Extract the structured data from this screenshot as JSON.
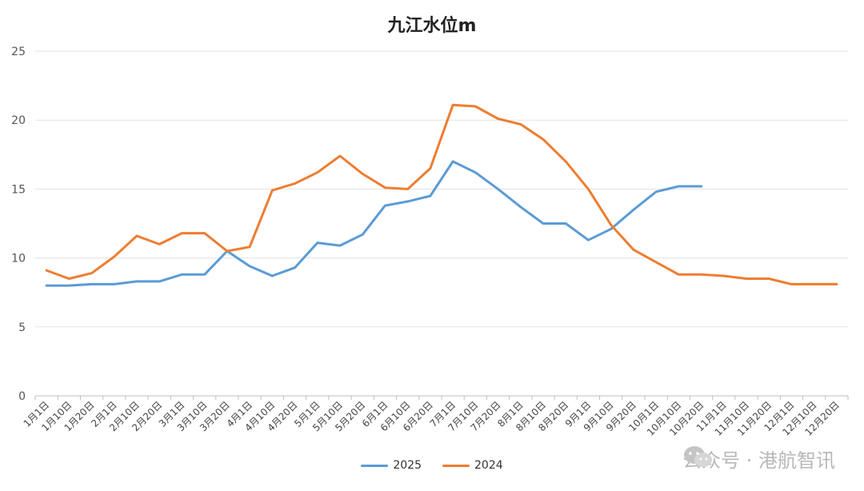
{
  "chart_data": {
    "type": "line",
    "title": "九江水位m",
    "ylim": [
      0,
      25
    ],
    "yticks": [
      0,
      5,
      10,
      15,
      20,
      25
    ],
    "grid": true,
    "legend": "bottom",
    "categories": [
      "1月1日",
      "1月10日",
      "1月20日",
      "2月1日",
      "2月10日",
      "2月20日",
      "3月1日",
      "3月10日",
      "3月20日",
      "4月1日",
      "4月10日",
      "4月20日",
      "5月1日",
      "5月10日",
      "5月20日",
      "6月1日",
      "6月10日",
      "6月20日",
      "7月1日",
      "7月10日",
      "7月20日",
      "8月1日",
      "8月10日",
      "8月20日",
      "9月1日",
      "9月10日",
      "9月20日",
      "10月1日",
      "10月10日",
      "10月20日",
      "11月1日",
      "11月10日",
      "11月20日",
      "12月1日",
      "12月10日",
      "12月20日"
    ],
    "series": [
      {
        "name": "2025",
        "color": "#5b9bd5",
        "values": [
          8.0,
          8.0,
          8.1,
          8.1,
          8.3,
          8.3,
          8.8,
          8.8,
          10.5,
          9.4,
          8.7,
          9.3,
          11.1,
          10.9,
          11.7,
          13.8,
          14.1,
          14.5,
          17.0,
          16.2,
          15.0,
          13.7,
          12.5,
          12.5,
          11.3,
          12.1,
          13.5,
          14.8,
          15.2,
          15.2,
          null,
          null,
          null,
          null,
          null,
          null
        ]
      },
      {
        "name": "2024",
        "color": "#ed7d31",
        "values": [
          9.1,
          8.5,
          8.9,
          10.1,
          11.6,
          11.0,
          11.8,
          11.8,
          10.5,
          10.8,
          14.9,
          15.4,
          16.2,
          17.4,
          16.1,
          15.1,
          15.0,
          16.5,
          21.1,
          21.0,
          20.1,
          19.7,
          18.6,
          17.0,
          15.0,
          12.4,
          10.6,
          9.7,
          8.8,
          8.8,
          8.7,
          8.5,
          8.5,
          8.1,
          8.1,
          8.1
        ]
      }
    ]
  },
  "watermark": {
    "text": "公众号 · 港航智讯",
    "icon": "wechat-icon"
  }
}
